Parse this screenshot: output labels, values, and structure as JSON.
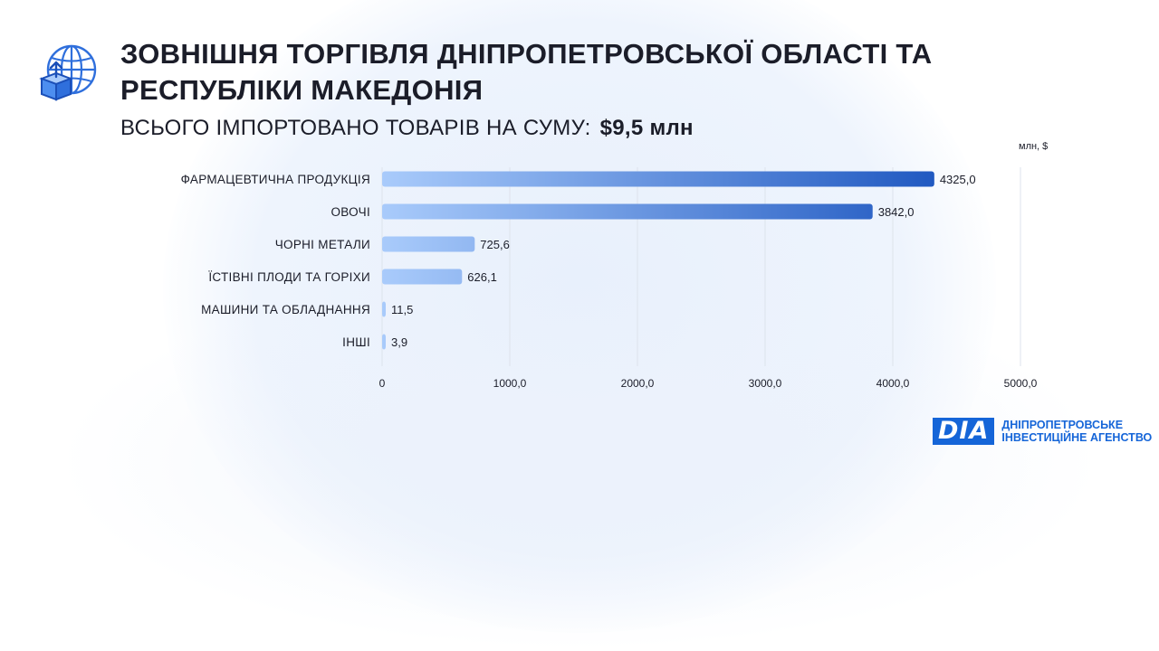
{
  "header": {
    "title": "ЗОВНІШНЯ ТОРГІВЛЯ ДНІПРОПЕТРОВСЬКОЇ ОБЛАСТІ ТА\nРЕСПУБЛІКИ  МАКЕДОНІЯ",
    "subtitle_prefix": "ВСЬОГО ІМПОРТОВАНО ТОВАРІВ НА СУМУ:",
    "subtitle_amount": "$9,5 млн",
    "icon": "globe-box-icon"
  },
  "chart_data": {
    "type": "bar",
    "orientation": "horizontal",
    "unit_label": "млн, $",
    "categories": [
      "ФАРМАЦЕВТИЧНА ПРОДУКЦІЯ",
      "ОВОЧІ",
      "ЧОРНІ МЕТАЛИ",
      "ЇСТІВНІ ПЛОДИ ТА ГОРІХИ",
      "МАШИНИ ТА ОБЛАДНАННЯ",
      "ІНШІ"
    ],
    "values": [
      4325.0,
      3842.0,
      725.6,
      626.1,
      11.5,
      3.9
    ],
    "value_labels": [
      "4325,0",
      "3842,0",
      "725,6",
      "626,1",
      "11,5",
      "3,9"
    ],
    "xlim": [
      0,
      5000
    ],
    "x_ticks": [
      0,
      1000,
      2000,
      3000,
      4000,
      5000
    ],
    "x_tick_labels": [
      "0",
      "1000,0",
      "2000,0",
      "3000,0",
      "4000,0",
      "5000,0"
    ],
    "grid": true,
    "colors": {
      "bar_start": "#a9cbfb",
      "bar_end": "#0b47b8"
    }
  },
  "logo": {
    "mark": "DIA",
    "line1": "ДНІПРОПЕТРОВСЬКЕ",
    "line2": "ІНВЕСТИЦІЙНЕ АГЕНСТВО",
    "color": "#1565d8"
  }
}
